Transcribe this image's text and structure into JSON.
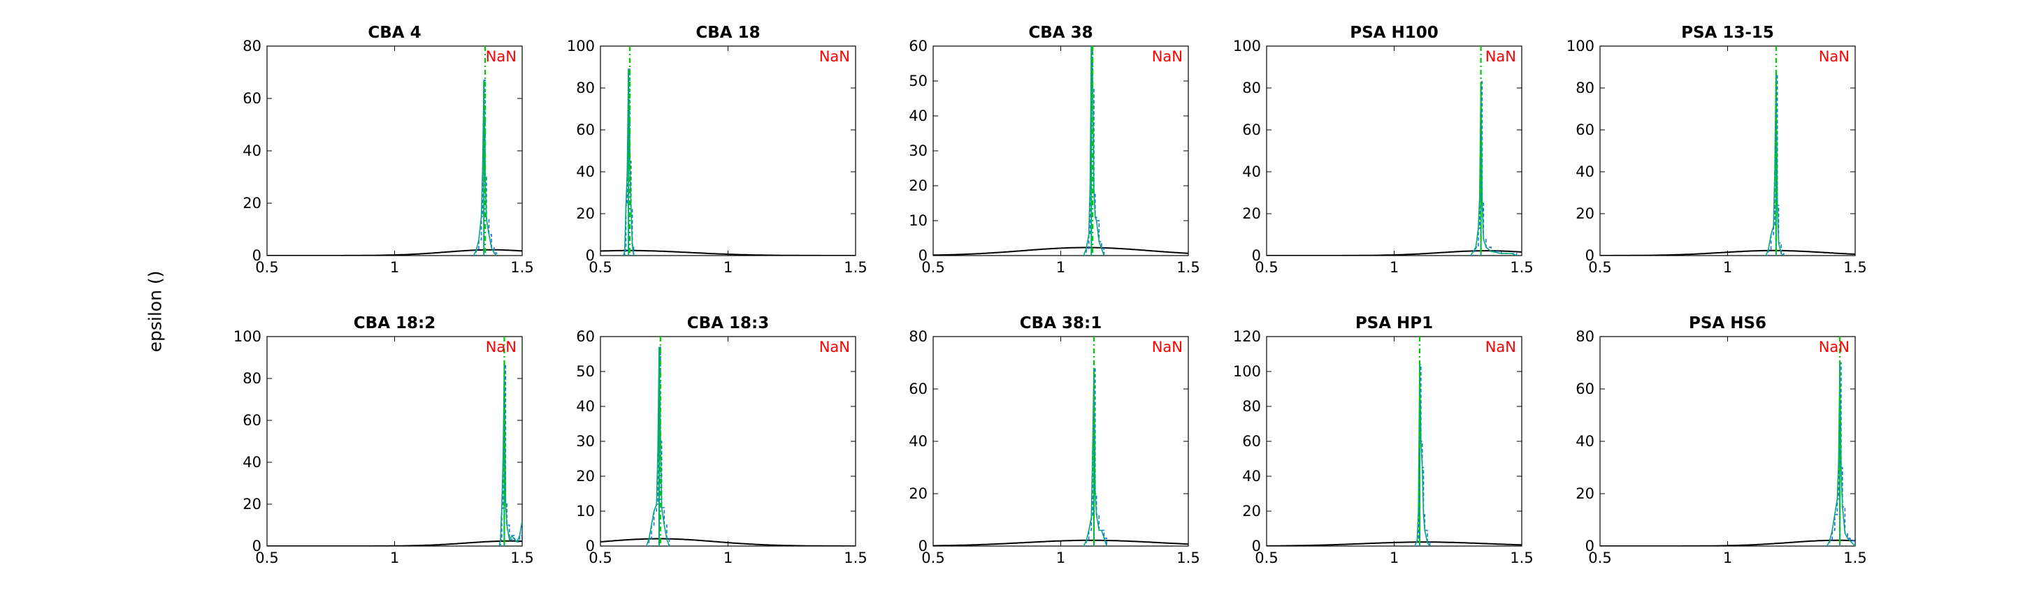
{
  "figure": {
    "ylabel": "epsilon ()",
    "annotation": "NaN",
    "colors": {
      "prior": "#000000",
      "posterior_hist": "#1f6fe0",
      "posterior_line": "#00a878",
      "marker": "#00cc00",
      "annotation": "#ff0000"
    }
  },
  "chart_data": [
    {
      "type": "line",
      "title": "CBA 4",
      "xlim": [
        0.5,
        1.5
      ],
      "ylim": [
        0,
        80
      ],
      "xticks": [
        "0.5",
        "1",
        "1.5"
      ],
      "yticks": [
        "0",
        "20",
        "40",
        "60",
        "80"
      ],
      "peak_x": 1.35,
      "peak_y": 67,
      "marker_x": 1.355,
      "annotation": "NaN",
      "prior": {
        "mean": 1.38,
        "sd": 0.18,
        "peak": 2.2
      },
      "posterior_hist": [
        [
          1.31,
          0
        ],
        [
          1.32,
          2
        ],
        [
          1.33,
          6
        ],
        [
          1.34,
          15
        ],
        [
          1.345,
          33
        ],
        [
          1.35,
          67
        ],
        [
          1.355,
          30
        ],
        [
          1.36,
          14
        ],
        [
          1.37,
          8
        ],
        [
          1.38,
          3
        ],
        [
          1.39,
          1
        ],
        [
          1.4,
          0
        ]
      ]
    },
    {
      "type": "line",
      "title": "CBA 18",
      "xlim": [
        0.5,
        1.5
      ],
      "ylim": [
        0,
        100
      ],
      "xticks": [
        "0.5",
        "1",
        "1.5"
      ],
      "yticks": [
        "0",
        "20",
        "40",
        "60",
        "80",
        "100"
      ],
      "peak_x": 0.61,
      "peak_y": 89,
      "marker_x": 0.615,
      "annotation": "NaN",
      "prior": {
        "mean": 0.61,
        "sd": 0.24,
        "peak": 2.4
      },
      "posterior_hist": [
        [
          0.59,
          0
        ],
        [
          0.595,
          2
        ],
        [
          0.6,
          24
        ],
        [
          0.605,
          40
        ],
        [
          0.61,
          89
        ],
        [
          0.615,
          45
        ],
        [
          0.62,
          22
        ],
        [
          0.625,
          5
        ],
        [
          0.63,
          0
        ]
      ]
    },
    {
      "type": "line",
      "title": "CBA 38",
      "xlim": [
        0.5,
        1.5
      ],
      "ylim": [
        0,
        60
      ],
      "xticks": [
        "0.5",
        "1",
        "1.5"
      ],
      "yticks": [
        "0",
        "10",
        "20",
        "30",
        "40",
        "50",
        "60"
      ],
      "peak_x": 1.12,
      "peak_y": 60,
      "marker_x": 1.125,
      "annotation": "NaN",
      "prior": {
        "mean": 1.1,
        "sd": 0.25,
        "peak": 2.3
      },
      "posterior_hist": [
        [
          1.09,
          0
        ],
        [
          1.1,
          2
        ],
        [
          1.11,
          6
        ],
        [
          1.115,
          20
        ],
        [
          1.12,
          60
        ],
        [
          1.125,
          48
        ],
        [
          1.13,
          18
        ],
        [
          1.135,
          11
        ],
        [
          1.14,
          10
        ],
        [
          1.15,
          4
        ],
        [
          1.16,
          2
        ],
        [
          1.17,
          0
        ]
      ]
    },
    {
      "type": "line",
      "title": "PSA H100",
      "xlim": [
        0.5,
        1.5
      ],
      "ylim": [
        0,
        100
      ],
      "xticks": [
        "0.5",
        "1",
        "1.5"
      ],
      "yticks": [
        "0",
        "20",
        "40",
        "60",
        "80",
        "100"
      ],
      "peak_x": 1.34,
      "peak_y": 83,
      "marker_x": 1.34,
      "annotation": "NaN",
      "prior": {
        "mean": 1.36,
        "sd": 0.18,
        "peak": 2.3
      },
      "posterior_hist": [
        [
          1.3,
          0
        ],
        [
          1.31,
          2
        ],
        [
          1.32,
          4
        ],
        [
          1.33,
          13
        ],
        [
          1.335,
          28
        ],
        [
          1.34,
          83
        ],
        [
          1.345,
          25
        ],
        [
          1.35,
          8
        ],
        [
          1.36,
          4
        ],
        [
          1.38,
          2
        ],
        [
          1.42,
          1
        ],
        [
          1.46,
          1
        ],
        [
          1.48,
          0
        ]
      ]
    },
    {
      "type": "line",
      "title": "PSA 13-15",
      "xlim": [
        0.5,
        1.5
      ],
      "ylim": [
        0,
        100
      ],
      "xticks": [
        "0.5",
        "1",
        "1.5"
      ],
      "yticks": [
        "0",
        "20",
        "40",
        "60",
        "80",
        "100"
      ],
      "peak_x": 1.19,
      "peak_y": 87,
      "marker_x": 1.19,
      "annotation": "NaN",
      "prior": {
        "mean": 1.18,
        "sd": 0.2,
        "peak": 2.4
      },
      "posterior_hist": [
        [
          1.15,
          0
        ],
        [
          1.16,
          3
        ],
        [
          1.17,
          10
        ],
        [
          1.18,
          14
        ],
        [
          1.185,
          40
        ],
        [
          1.19,
          87
        ],
        [
          1.195,
          24
        ],
        [
          1.2,
          6
        ],
        [
          1.21,
          1
        ],
        [
          1.22,
          0
        ]
      ]
    },
    {
      "type": "line",
      "title": "CBA 18:2",
      "xlim": [
        0.5,
        1.5
      ],
      "ylim": [
        0,
        100
      ],
      "xticks": [
        "0.5",
        "1",
        "1.5"
      ],
      "yticks": [
        "0",
        "20",
        "40",
        "60",
        "80",
        "100"
      ],
      "peak_x": 1.43,
      "peak_y": 87,
      "marker_x": 1.43,
      "annotation": "NaN",
      "prior": {
        "mean": 1.45,
        "sd": 0.17,
        "peak": 2.4
      },
      "posterior_hist": [
        [
          1.41,
          0
        ],
        [
          1.415,
          3
        ],
        [
          1.42,
          18
        ],
        [
          1.425,
          40
        ],
        [
          1.43,
          87
        ],
        [
          1.435,
          21
        ],
        [
          1.44,
          10
        ],
        [
          1.45,
          3
        ],
        [
          1.46,
          5
        ],
        [
          1.47,
          3
        ],
        [
          1.48,
          2
        ],
        [
          1.49,
          5
        ],
        [
          1.5,
          12
        ]
      ]
    },
    {
      "type": "line",
      "title": "CBA 18:3",
      "xlim": [
        0.5,
        1.5
      ],
      "ylim": [
        0,
        60
      ],
      "xticks": [
        "0.5",
        "1",
        "1.5"
      ],
      "yticks": [
        "0",
        "10",
        "20",
        "30",
        "40",
        "50",
        "60"
      ],
      "peak_x": 0.73,
      "peak_y": 57,
      "marker_x": 0.735,
      "annotation": "NaN",
      "prior": {
        "mean": 0.73,
        "sd": 0.22,
        "peak": 2.1
      },
      "posterior_hist": [
        [
          0.68,
          0
        ],
        [
          0.69,
          2
        ],
        [
          0.7,
          6
        ],
        [
          0.71,
          10
        ],
        [
          0.72,
          12
        ],
        [
          0.725,
          27
        ],
        [
          0.73,
          57
        ],
        [
          0.735,
          30
        ],
        [
          0.74,
          11
        ],
        [
          0.75,
          6
        ],
        [
          0.76,
          2
        ],
        [
          0.77,
          0
        ]
      ]
    },
    {
      "type": "line",
      "title": "CBA 38:1",
      "xlim": [
        0.5,
        1.5
      ],
      "ylim": [
        0,
        80
      ],
      "xticks": [
        "0.5",
        "1",
        "1.5"
      ],
      "yticks": [
        "0",
        "20",
        "40",
        "60",
        "80"
      ],
      "peak_x": 1.13,
      "peak_y": 68,
      "marker_x": 1.13,
      "annotation": "NaN",
      "prior": {
        "mean": 1.12,
        "sd": 0.26,
        "peak": 2.2
      },
      "posterior_hist": [
        [
          1.09,
          0
        ],
        [
          1.1,
          2
        ],
        [
          1.11,
          6
        ],
        [
          1.12,
          11
        ],
        [
          1.125,
          36
        ],
        [
          1.13,
          68
        ],
        [
          1.135,
          20
        ],
        [
          1.14,
          12
        ],
        [
          1.15,
          6
        ],
        [
          1.16,
          6
        ],
        [
          1.17,
          3
        ],
        [
          1.18,
          0
        ]
      ]
    },
    {
      "type": "line",
      "title": "PSA HP1",
      "xlim": [
        0.5,
        1.5
      ],
      "ylim": [
        0,
        120
      ],
      "xticks": [
        "0.5",
        "1",
        "1.5"
      ],
      "yticks": [
        "0",
        "20",
        "40",
        "60",
        "80",
        "100",
        "120"
      ],
      "peak_x": 1.1,
      "peak_y": 104,
      "marker_x": 1.1,
      "annotation": "NaN",
      "prior": {
        "mean": 1.12,
        "sd": 0.24,
        "peak": 2.3
      },
      "posterior_hist": [
        [
          1.08,
          0
        ],
        [
          1.09,
          3
        ],
        [
          1.095,
          20
        ],
        [
          1.1,
          104
        ],
        [
          1.105,
          60
        ],
        [
          1.11,
          45
        ],
        [
          1.115,
          18
        ],
        [
          1.12,
          9
        ],
        [
          1.13,
          2
        ],
        [
          1.14,
          0
        ]
      ]
    },
    {
      "type": "line",
      "title": "PSA HS6",
      "xlim": [
        0.5,
        1.5
      ],
      "ylim": [
        0,
        80
      ],
      "xticks": [
        "0.5",
        "1",
        "1.5"
      ],
      "yticks": [
        "0",
        "20",
        "40",
        "60",
        "80"
      ],
      "peak_x": 1.44,
      "peak_y": 70,
      "marker_x": 1.44,
      "annotation": "NaN",
      "prior": {
        "mean": 1.43,
        "sd": 0.19,
        "peak": 2.2
      },
      "posterior_hist": [
        [
          1.39,
          0
        ],
        [
          1.4,
          2
        ],
        [
          1.41,
          6
        ],
        [
          1.42,
          12
        ],
        [
          1.43,
          18
        ],
        [
          1.435,
          32
        ],
        [
          1.44,
          70
        ],
        [
          1.445,
          30
        ],
        [
          1.45,
          15
        ],
        [
          1.46,
          5
        ],
        [
          1.47,
          3
        ],
        [
          1.48,
          2
        ],
        [
          1.5,
          0
        ]
      ]
    }
  ]
}
